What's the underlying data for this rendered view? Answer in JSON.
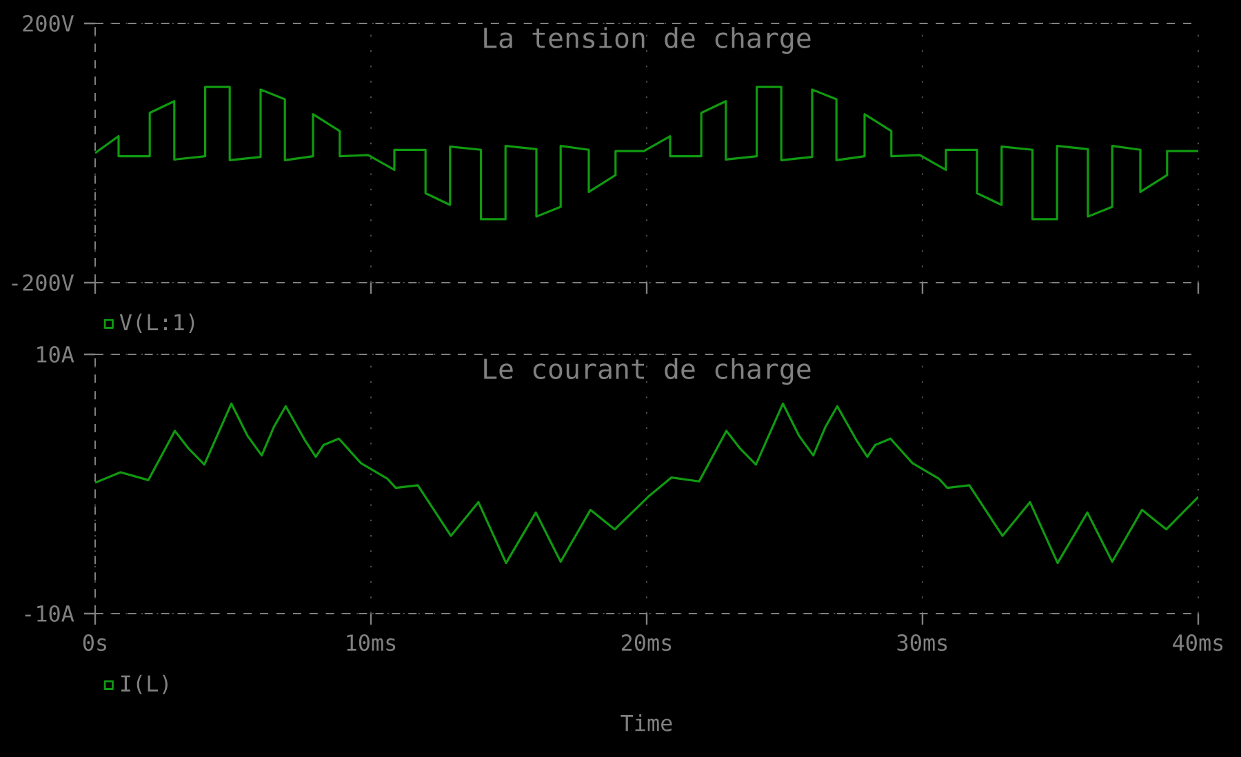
{
  "chart_data": [
    {
      "type": "line",
      "title": "La tension de charge",
      "x": [
        0,
        0.85,
        0.85,
        1.98,
        1.98,
        2.87,
        2.87,
        3.99,
        3.99,
        4.88,
        4.88,
        6.0,
        6.0,
        6.88,
        6.88,
        7.9,
        7.9,
        8.87,
        8.87,
        9.9,
        10.85,
        10.85,
        11.98,
        11.98,
        12.87,
        12.87,
        13.99,
        13.99,
        14.88,
        14.88,
        16.0,
        16.0,
        16.88,
        16.88,
        17.9,
        17.9,
        18.87,
        18.87,
        19.9,
        20.85,
        20.85,
        21.98,
        21.98,
        22.87,
        22.87,
        23.99,
        23.99,
        24.88,
        24.88,
        26.0,
        26.0,
        26.88,
        26.88,
        27.9,
        27.9,
        28.87,
        28.87,
        29.9,
        30.85,
        30.85,
        31.98,
        31.98,
        32.87,
        32.87,
        33.99,
        33.99,
        34.88,
        34.88,
        36.0,
        36.0,
        36.88,
        36.88,
        37.9,
        37.9,
        38.87,
        38.87,
        40
      ],
      "series": [
        {
          "name": "V(L:1)",
          "color": "#109a10",
          "values": [
            0,
            26,
            -5,
            -5,
            62,
            80,
            -10,
            -5,
            102,
            102,
            -11,
            -6,
            98,
            83,
            -11,
            -5,
            60,
            34,
            -5,
            -3,
            -26,
            5,
            5,
            -62,
            -80,
            10,
            5,
            -102,
            -102,
            11,
            6,
            -98,
            -83,
            11,
            5,
            -60,
            -34,
            3,
            3,
            26,
            -5,
            -5,
            62,
            80,
            -10,
            -5,
            102,
            102,
            -11,
            -6,
            98,
            83,
            -11,
            -5,
            60,
            34,
            -5,
            -3,
            -26,
            5,
            5,
            -62,
            -80,
            10,
            5,
            -102,
            -102,
            11,
            6,
            -98,
            -83,
            11,
            5,
            -60,
            -34,
            3,
            3
          ]
        }
      ],
      "xlim": [
        0,
        40
      ],
      "xticks": [
        0,
        10,
        20,
        30,
        40
      ],
      "ylim": [
        -200,
        200
      ],
      "yticks": [
        {
          "value": 200,
          "label": "200V"
        },
        {
          "value": -200,
          "label": "-200V"
        }
      ],
      "tick_labels": "y",
      "grid": true,
      "legend": "bottom left"
    },
    {
      "type": "line",
      "title": "Le courant de charge",
      "xlabel": "Time",
      "x": [
        0,
        0.92,
        1.93,
        2.89,
        3.4,
        3.96,
        4.94,
        5.53,
        6.04,
        6.48,
        6.91,
        7.6,
        8.0,
        8.28,
        8.84,
        9.64,
        10.6,
        10.9,
        11.7,
        12.9,
        13.9,
        14.9,
        15.98,
        16.88,
        17.96,
        18.84,
        20.1,
        20.9,
        21.9,
        22.89,
        23.4,
        23.96,
        24.94,
        25.53,
        26.04,
        26.48,
        26.91,
        27.6,
        28.0,
        28.28,
        28.84,
        29.64,
        30.6,
        30.9,
        31.7,
        32.9,
        33.9,
        34.9,
        35.98,
        36.88,
        37.96,
        38.84,
        40
      ],
      "series": [
        {
          "name": "I(L)",
          "color": "#109a10",
          "values": [
            0.1,
            0.9,
            0.3,
            4.1,
            2.7,
            1.5,
            6.2,
            3.7,
            2.2,
            4.4,
            6.0,
            3.4,
            2.1,
            3.0,
            3.5,
            1.6,
            0.4,
            -0.3,
            -0.1,
            -4.0,
            -1.4,
            -6.1,
            -2.2,
            -6.0,
            -2.0,
            -3.5,
            -0.9,
            0.5,
            0.2,
            4.1,
            2.7,
            1.5,
            6.2,
            3.7,
            2.2,
            4.4,
            6.0,
            3.4,
            2.1,
            3.0,
            3.5,
            1.6,
            0.4,
            -0.3,
            -0.1,
            -4.0,
            -1.4,
            -6.1,
            -2.2,
            -6.0,
            -2.0,
            -3.5,
            -1.0
          ]
        }
      ],
      "xlim": [
        0,
        40
      ],
      "xticks": [
        {
          "value": 0,
          "label": "0s"
        },
        {
          "value": 10,
          "label": "10ms"
        },
        {
          "value": 20,
          "label": "20ms"
        },
        {
          "value": 30,
          "label": "30ms"
        },
        {
          "value": 40,
          "label": "40ms"
        }
      ],
      "ylim": [
        -10,
        10
      ],
      "yticks": [
        {
          "value": 10,
          "label": "10A"
        },
        {
          "value": -10,
          "label": "-10A"
        }
      ],
      "grid": true,
      "legend": "bottom left"
    }
  ]
}
